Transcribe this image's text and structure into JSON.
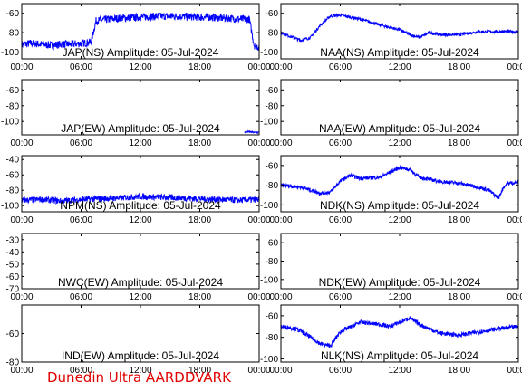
{
  "footer": "Dunedin Ultra AARDDVARK",
  "chart_data": [
    {
      "type": "line",
      "title": "JAP(NS) Amplitude: 05-Jul-2024",
      "xticks": [
        "00:00",
        "06:00",
        "12:00",
        "18:00",
        "00:00"
      ],
      "yticks": [
        "-60",
        "-80",
        "-100"
      ],
      "ylim": [
        -107,
        -50
      ],
      "x": [
        0,
        1,
        2,
        3,
        4,
        5,
        6,
        7,
        7.5,
        8,
        10,
        12,
        14,
        16,
        18,
        19,
        20,
        21,
        22,
        23,
        23.5,
        24
      ],
      "y": [
        -92,
        -91,
        -92,
        -93,
        -92,
        -92,
        -91,
        -90,
        -68,
        -67,
        -65,
        -64,
        -63,
        -63,
        -64,
        -64,
        -65,
        -65,
        -66,
        -66,
        -93,
        -95
      ],
      "noise": 4,
      "color": "#0000ff"
    },
    {
      "type": "line",
      "title": "NAA(NS) Amplitude: 05-Jul-2024",
      "xticks": [
        "00:00",
        "06:00",
        "12:00",
        "18:00",
        "00:00"
      ],
      "yticks": [
        "-60",
        "-80",
        "-100"
      ],
      "ylim": [
        -107,
        -50
      ],
      "x": [
        0,
        1,
        2,
        3,
        4,
        5,
        6,
        8,
        10,
        12,
        13,
        14,
        15,
        16,
        18,
        20,
        22,
        24
      ],
      "y": [
        -80,
        -84,
        -88,
        -85,
        -72,
        -63,
        -62,
        -66,
        -72,
        -77,
        -82,
        -85,
        -80,
        -82,
        -82,
        -79,
        -79,
        -79
      ],
      "noise": 1.5,
      "color": "#0000ff"
    },
    {
      "type": "line",
      "title": "JAP(EW) Amplitude: 05-Jul-2024",
      "xticks": [
        "00:00",
        "06:00",
        "12:00",
        "18:00",
        "00:00"
      ],
      "yticks": [
        "-60",
        "-80",
        "-100"
      ],
      "ylim": [
        -117,
        -47
      ],
      "x": [
        22.5,
        23,
        23.5,
        24
      ],
      "y": [
        -114,
        -113,
        -114,
        -114
      ],
      "noise": 1,
      "color": "#0000ff"
    },
    {
      "type": "line",
      "title": "NAA(EW) Amplitude: 05-Jul-2024",
      "xticks": [
        "00:00",
        "06:00",
        "12:00",
        "18:00",
        "00:00"
      ],
      "yticks": [
        "-60",
        "-80",
        "-100"
      ],
      "ylim": [
        -117,
        -47
      ],
      "x": [],
      "y": [],
      "noise": 0,
      "color": "#0000ff"
    },
    {
      "type": "line",
      "title": "NPM(NS) Amplitude: 05-Jul-2024",
      "xticks": [
        "00:00",
        "06:00",
        "12:00",
        "18:00",
        "00:00"
      ],
      "yticks": [
        "-40",
        "-60",
        "-80",
        "-100"
      ],
      "ylim": [
        -108,
        -35
      ],
      "x": [
        0,
        2,
        4,
        6,
        8,
        10,
        12,
        14,
        16,
        18,
        20,
        22,
        24
      ],
      "y": [
        -93,
        -92,
        -94,
        -92,
        -91,
        -90,
        -88,
        -89,
        -90,
        -91,
        -92,
        -93,
        -92
      ],
      "noise": 4,
      "color": "#0000ff"
    },
    {
      "type": "line",
      "title": "NDK(NS) Amplitude: 05-Jul-2024",
      "xticks": [
        "00:00",
        "06:00",
        "12:00",
        "18:00",
        "00:00"
      ],
      "yticks": [
        "-60",
        "-80",
        "-100"
      ],
      "ylim": [
        -107,
        -50
      ],
      "x": [
        0,
        2,
        4,
        5,
        6,
        7,
        8,
        10,
        11,
        12,
        13,
        14,
        16,
        18,
        20,
        21,
        22,
        22.5,
        23,
        24
      ],
      "y": [
        -80,
        -82,
        -88,
        -87,
        -76,
        -70,
        -73,
        -72,
        -67,
        -62,
        -64,
        -72,
        -76,
        -78,
        -82,
        -85,
        -93,
        -82,
        -78,
        -77
      ],
      "noise": 2,
      "color": "#0000ff"
    },
    {
      "type": "line",
      "title": "NWC(EW) Amplitude: 05-Jul-2024",
      "xticks": [
        "00:00",
        "06:00",
        "12:00",
        "18:00",
        "00:00"
      ],
      "yticks": [
        "-30",
        "-40",
        "-50",
        "-60",
        "-70"
      ],
      "ylim": [
        -70,
        -25
      ],
      "x": [],
      "y": [],
      "noise": 0,
      "color": "#0000ff"
    },
    {
      "type": "line",
      "title": "NDK(EW) Amplitude: 05-Jul-2024",
      "xticks": [
        "00:00",
        "06:00",
        "12:00",
        "18:00",
        "00:00"
      ],
      "yticks": [
        "-60",
        "-80",
        "-100"
      ],
      "ylim": [
        -110,
        -50
      ],
      "x": [],
      "y": [],
      "noise": 0,
      "color": "#0000ff"
    },
    {
      "type": "line",
      "title": "IND(EW) Amplitude: 05-Jul-2024",
      "xticks": [
        "00:00",
        "06:00",
        "12:00",
        "18:00",
        "00:00"
      ],
      "yticks": [
        "-60",
        "-80"
      ],
      "ylim": [
        -80,
        -40
      ],
      "x": [],
      "y": [],
      "noise": 0,
      "color": "#0000ff"
    },
    {
      "type": "line",
      "title": "NLK(NS) Amplitude: 05-Jul-2024",
      "xticks": [
        "00:00",
        "06:00",
        "12:00",
        "18:00",
        "00:00"
      ],
      "yticks": [
        "-60",
        "-80",
        "-100"
      ],
      "ylim": [
        -103,
        -50
      ],
      "x": [
        0,
        1,
        2,
        3,
        4,
        5,
        6,
        8,
        10,
        11,
        12,
        13,
        14,
        16,
        18,
        20,
        22,
        24
      ],
      "y": [
        -70,
        -71,
        -74,
        -80,
        -86,
        -88,
        -75,
        -66,
        -68,
        -70,
        -66,
        -62,
        -68,
        -76,
        -78,
        -75,
        -72,
        -70
      ],
      "noise": 2,
      "color": "#0000ff"
    }
  ]
}
